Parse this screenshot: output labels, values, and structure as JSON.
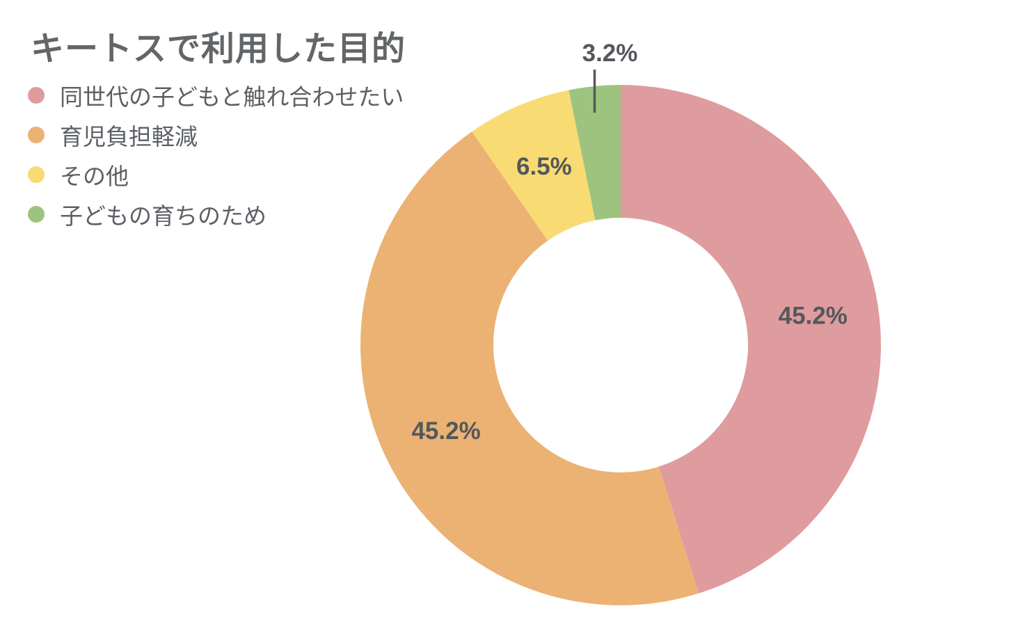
{
  "chart_data": {
    "type": "pie",
    "subtype": "donut",
    "title": "キートスで利用した目的",
    "categories": [
      "同世代の子どもと触れ合わせたい",
      "育児負担軽減",
      "その他",
      "子どもの育ちのため"
    ],
    "values": [
      45.2,
      45.2,
      6.5,
      3.2
    ],
    "value_labels": [
      "45.2%",
      "45.2%",
      "6.5%",
      "3.2%"
    ],
    "colors": [
      "#DE9C9E",
      "#EBB273",
      "#F8DB72",
      "#9CC47E"
    ],
    "start_angle_deg": 0,
    "direction": "clockwise",
    "inner_radius_ratio": 0.49,
    "legend_position": "top-left",
    "value_label_color": "#54585c",
    "title_color": "#636669",
    "legend_text_color": "#5c6065",
    "callout_line_color": "#55585d",
    "callout_indices": [
      3
    ],
    "background_color": "#ffffff"
  }
}
